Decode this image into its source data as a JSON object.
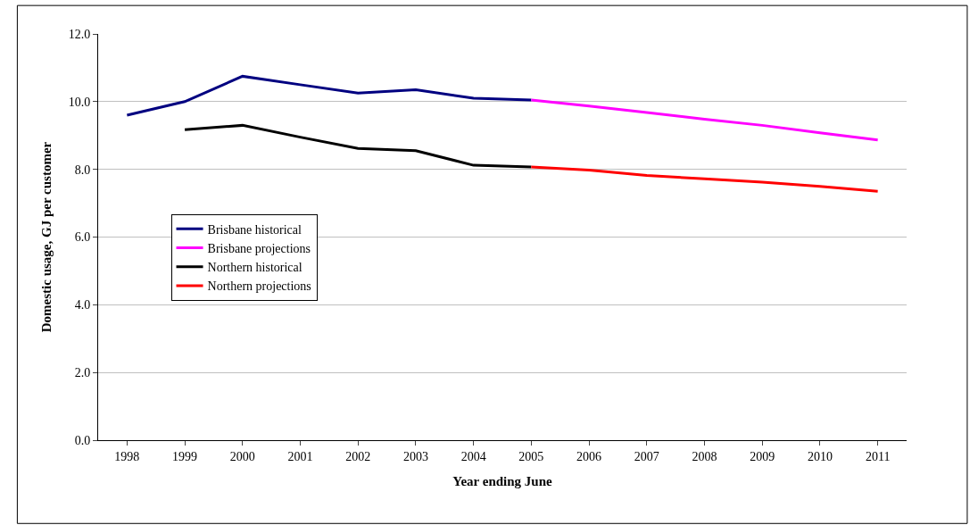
{
  "chart_data": {
    "type": "line",
    "xlabel": "Year ending June",
    "ylabel": "Domestic usage, GJ per customer",
    "categories": [
      "1998",
      "1999",
      "2000",
      "2001",
      "2002",
      "2003",
      "2004",
      "2005",
      "2006",
      "2007",
      "2008",
      "2009",
      "2010",
      "2011"
    ],
    "series": [
      {
        "name": "Brisbane historical",
        "color": "#000080",
        "values": [
          9.6,
          10.0,
          10.75,
          10.5,
          10.25,
          10.35,
          10.1,
          10.05,
          null,
          null,
          null,
          null,
          null,
          null
        ]
      },
      {
        "name": "Brisbane projections",
        "color": "#ff00ff",
        "values": [
          null,
          null,
          null,
          null,
          null,
          null,
          null,
          10.05,
          9.87,
          9.68,
          9.48,
          9.3,
          9.08,
          8.87
        ]
      },
      {
        "name": "Northern historical",
        "color": "#000000",
        "values": [
          null,
          9.17,
          9.3,
          8.95,
          8.62,
          8.55,
          8.12,
          8.07,
          null,
          null,
          null,
          null,
          null,
          null
        ]
      },
      {
        "name": "Northern projections",
        "color": "#ff0000",
        "values": [
          null,
          null,
          null,
          null,
          null,
          null,
          null,
          8.07,
          7.98,
          7.82,
          7.72,
          7.62,
          7.5,
          7.35
        ]
      }
    ],
    "ylim": [
      0,
      12
    ],
    "yticks": [
      {
        "value": 0,
        "label": "0.0"
      },
      {
        "value": 2,
        "label": "2.0"
      },
      {
        "value": 4,
        "label": "4.0"
      },
      {
        "value": 6,
        "label": "6.0"
      },
      {
        "value": 8,
        "label": "8.0"
      },
      {
        "value": 10,
        "label": "10.0"
      },
      {
        "value": 12,
        "label": "12.0"
      }
    ],
    "grid": "y",
    "legend": "left",
    "marker": "none",
    "line_style": "solid"
  }
}
